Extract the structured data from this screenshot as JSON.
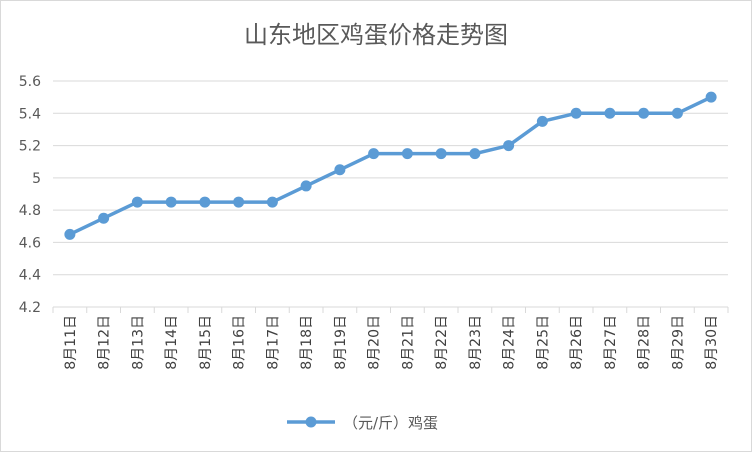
{
  "chart_data": {
    "type": "line",
    "title": "山东地区鸡蛋价格走势图",
    "xlabel": "",
    "ylabel": "",
    "ylim": [
      4.2,
      5.6
    ],
    "yticks": [
      "4.2",
      "4.4",
      "4.6",
      "4.8",
      "5",
      "5.2",
      "5.4",
      "5.6"
    ],
    "grid": true,
    "legend_position": "bottom",
    "categories": [
      "8月11日",
      "8月12日",
      "8月13日",
      "8月14日",
      "8月15日",
      "8月16日",
      "8月17日",
      "8月18日",
      "8月19日",
      "8月20日",
      "8月21日",
      "8月22日",
      "8月23日",
      "8月24日",
      "8月25日",
      "8月26日",
      "8月27日",
      "8月28日",
      "8月29日",
      "8月30日"
    ],
    "series": [
      {
        "name": "（元/斤）鸡蛋",
        "color": "#5b9bd5",
        "values": [
          4.65,
          4.75,
          4.85,
          4.85,
          4.85,
          4.85,
          4.85,
          4.95,
          5.05,
          5.15,
          5.15,
          5.15,
          5.15,
          5.2,
          5.35,
          5.4,
          5.4,
          5.4,
          5.4,
          5.5
        ]
      }
    ]
  }
}
